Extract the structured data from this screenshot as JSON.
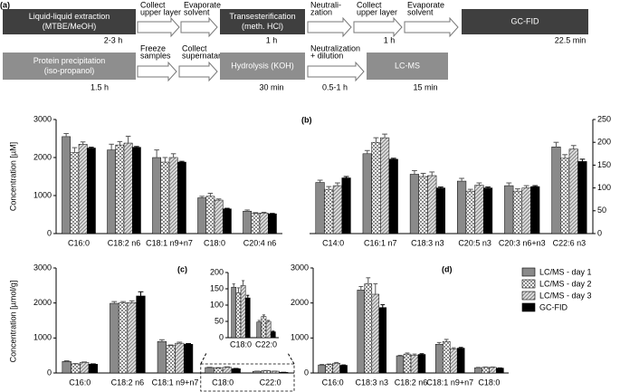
{
  "workflow": {
    "label": "(a)",
    "rows": [
      {
        "boxes": [
          {
            "lines": [
              "Liquid-liquid extraction",
              "(MTBE/MeOH)"
            ]
          },
          {
            "lines": [
              "Transesterification",
              "(meth. HCl)"
            ]
          },
          {
            "lines": [
              "GC-FID"
            ]
          }
        ],
        "arrows": [
          {
            "lines": [
              "Collect",
              "upper layer"
            ]
          },
          {
            "lines": [
              "Evaporate",
              "solvent"
            ]
          },
          {
            "lines": [
              "Neutrali-",
              "zation"
            ]
          },
          {
            "lines": [
              "Collect",
              "upper layer"
            ]
          },
          {
            "lines": [
              "Evaporate",
              "solvent"
            ]
          }
        ],
        "times": [
          "2-3 h",
          "1 h",
          "1 h",
          "22.5 min"
        ]
      },
      {
        "boxes": [
          {
            "lines": [
              "Protein precipitation",
              "(iso-propanol)"
            ]
          },
          {
            "lines": [
              "Hydrolysis (KOH)"
            ]
          },
          {
            "lines": [
              "LC-MS"
            ]
          }
        ],
        "arrows": [
          {
            "lines": [
              "Freeze",
              "samples"
            ]
          },
          {
            "lines": [
              "Collect",
              "supernatant"
            ]
          },
          {
            "lines": [
              "Neutralization",
              "+ dilution"
            ]
          }
        ],
        "times": [
          "1.5 h",
          "30 min",
          "0.5-1 h",
          "15 min"
        ]
      }
    ]
  },
  "chart_data": [
    {
      "type": "bar",
      "y_label": "Concentration [µM]",
      "categories": [
        "C16:0",
        "C18:2 n6",
        "C18:1 n9+n7",
        "C18:0",
        "C20:4 n6"
      ],
      "ylim": [
        0,
        3000
      ],
      "yticks": [
        0,
        1000,
        2000,
        3000
      ],
      "series": [
        {
          "color": "#8a8a8a",
          "pattern": "solid",
          "values": [
            2550,
            2200,
            2000,
            940,
            590
          ],
          "errors": [
            80,
            150,
            200,
            40,
            30
          ]
        },
        {
          "color": "#8a8a8a",
          "pattern": "check",
          "values": [
            2130,
            2330,
            1880,
            980,
            530
          ],
          "errors": [
            130,
            90,
            120,
            80,
            20
          ]
        },
        {
          "color": "#8a8a8a",
          "pattern": "hatch",
          "values": [
            2350,
            2380,
            2000,
            880,
            540
          ],
          "errors": [
            60,
            180,
            100,
            30,
            20
          ]
        },
        {
          "color": "#000000",
          "pattern": "solid",
          "values": [
            2250,
            2270,
            1880,
            650,
            520
          ],
          "errors": [
            20,
            20,
            20,
            15,
            10
          ]
        }
      ]
    },
    {
      "type": "bar",
      "panel": "(b)",
      "axis_side": "right",
      "categories": [
        "C14:0",
        "C16:1 n7",
        "C18:3 n3",
        "C20:5 n3",
        "C20:3 n6+n3",
        "C22:6 n3"
      ],
      "ylim": [
        0,
        250
      ],
      "yticks": [
        0,
        50,
        100,
        150,
        200,
        250
      ],
      "series": [
        {
          "color": "#8a8a8a",
          "pattern": "solid",
          "values": [
            112,
            175,
            130,
            115,
            105,
            190
          ],
          "errors": [
            5,
            7,
            8,
            6,
            6,
            10
          ]
        },
        {
          "color": "#8a8a8a",
          "pattern": "check",
          "values": [
            97,
            200,
            125,
            93,
            93,
            165
          ],
          "errors": [
            6,
            10,
            7,
            4,
            5,
            8
          ]
        },
        {
          "color": "#8a8a8a",
          "pattern": "hatch",
          "values": [
            105,
            210,
            127,
            106,
            100,
            185
          ],
          "errors": [
            6,
            8,
            8,
            5,
            5,
            8
          ]
        },
        {
          "color": "#000000",
          "pattern": "solid",
          "values": [
            122,
            163,
            100,
            100,
            103,
            158
          ],
          "errors": [
            3,
            2,
            2,
            2,
            2,
            5
          ]
        }
      ]
    },
    {
      "type": "bar",
      "panel": "(c)",
      "y_label": "Concentration [µmol/g]",
      "categories": [
        "C16:0",
        "C18:2 n6",
        "C18:1 n9+n7",
        "C18:0",
        "C22:0"
      ],
      "ylim": [
        0,
        3000
      ],
      "yticks": [
        0,
        1000,
        2000,
        3000
      ],
      "series": [
        {
          "color": "#8a8a8a",
          "pattern": "solid",
          "values": [
            330,
            1990,
            900,
            155,
            48
          ],
          "errors": [
            20,
            50,
            50,
            10,
            5
          ]
        },
        {
          "color": "#8a8a8a",
          "pattern": "check",
          "values": [
            260,
            2000,
            780,
            138,
            65
          ],
          "errors": [
            10,
            40,
            20,
            15,
            5
          ]
        },
        {
          "color": "#8a8a8a",
          "pattern": "hatch",
          "values": [
            300,
            2010,
            850,
            160,
            50
          ],
          "errors": [
            15,
            50,
            30,
            15,
            3
          ]
        },
        {
          "color": "#000000",
          "pattern": "solid",
          "values": [
            250,
            2200,
            820,
            122,
            18
          ],
          "errors": [
            10,
            120,
            20,
            8,
            2
          ]
        }
      ]
    },
    {
      "type": "bar",
      "categories": [
        "C18:0",
        "C22:0"
      ],
      "ylim": [
        0,
        200
      ],
      "yticks": [
        0,
        50,
        100,
        150,
        200
      ],
      "series": [
        {
          "color": "#8a8a8a",
          "pattern": "solid",
          "values": [
            155,
            48
          ],
          "errors": [
            10,
            5
          ]
        },
        {
          "color": "#8a8a8a",
          "pattern": "check",
          "values": [
            138,
            65
          ],
          "errors": [
            15,
            5
          ]
        },
        {
          "color": "#8a8a8a",
          "pattern": "hatch",
          "values": [
            160,
            50
          ],
          "errors": [
            15,
            3
          ]
        },
        {
          "color": "#000000",
          "pattern": "solid",
          "values": [
            122,
            18
          ],
          "errors": [
            8,
            2
          ]
        }
      ]
    },
    {
      "type": "bar",
      "panel": "(d)",
      "legend": "right",
      "categories": [
        "C16:0",
        "C18:3 n3",
        "C18:2 n6",
        "C18:1 n9+n7",
        "C18:0"
      ],
      "ylim": [
        0,
        3000
      ],
      "yticks": [
        0,
        1000,
        2000,
        3000
      ],
      "series": [
        {
          "name": "LC/MS - day 1",
          "color": "#8a8a8a",
          "pattern": "solid",
          "values": [
            230,
            2370,
            490,
            820,
            150
          ],
          "errors": [
            15,
            100,
            15,
            50,
            10
          ]
        },
        {
          "name": "LC/MS - day 2",
          "color": "#8a8a8a",
          "pattern": "check",
          "values": [
            240,
            2550,
            540,
            900,
            160
          ],
          "errors": [
            15,
            170,
            30,
            60,
            10
          ]
        },
        {
          "name": "LC/MS - day 3",
          "color": "#8a8a8a",
          "pattern": "hatch",
          "values": [
            280,
            2250,
            500,
            680,
            160
          ],
          "errors": [
            20,
            300,
            40,
            40,
            10
          ]
        },
        {
          "name": "GC-FID",
          "color": "#000000",
          "pattern": "solid",
          "values": [
            220,
            1870,
            530,
            710,
            140
          ],
          "errors": [
            10,
            80,
            20,
            20,
            5
          ]
        }
      ]
    }
  ]
}
